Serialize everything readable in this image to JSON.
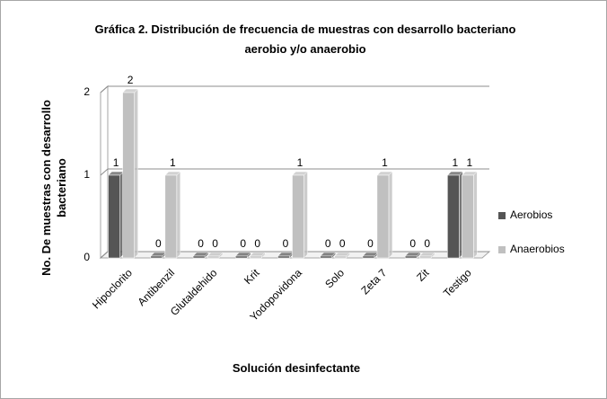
{
  "chart_data": {
    "type": "bar3d",
    "title": "Gráfica 2.  Distribución de frecuencia de muestras con desarrollo bacteriano aerobio y/o anaerobio",
    "y_label": "No. De muestras con desarrollo bacteriano",
    "x_label": "Solución desinfectante",
    "categories": [
      "Hipoclorito",
      "Antibenzil",
      "Glutaldehido",
      "Krit",
      "Yodopovidona",
      "Solo",
      "Zeta 7",
      "Zit",
      "Testigo"
    ],
    "series": [
      {
        "name": "Aerobios",
        "color": "#555555",
        "values": [
          1,
          0,
          0,
          0,
          0,
          0,
          0,
          0,
          1
        ]
      },
      {
        "name": "Anaerobios",
        "color": "#c0c0c0",
        "values": [
          2,
          1,
          0,
          0,
          1,
          0,
          1,
          0,
          1
        ]
      }
    ],
    "ylim": [
      0,
      2
    ],
    "yticks": [
      0,
      1,
      2
    ],
    "grid": true,
    "legend": "right"
  }
}
